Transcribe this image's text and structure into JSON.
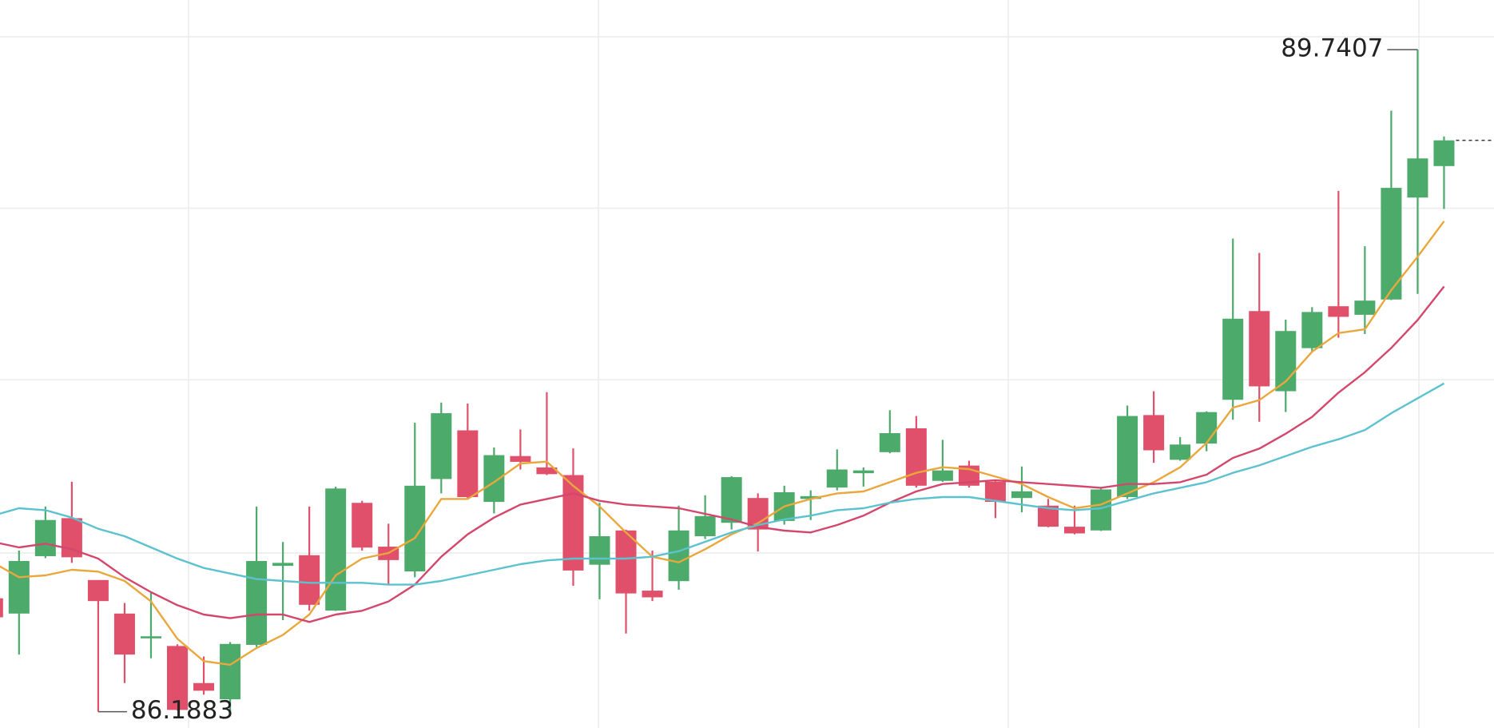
{
  "chart_data": {
    "type": "candlestick",
    "up_color": "#4caa6b",
    "down_color": "#e0506a",
    "ylim": [
      86.101,
      90.007
    ],
    "yticks": [
      87.04,
      87.97,
      88.89,
      89.81
    ],
    "grid": true,
    "open": [
      86.797,
      86.715,
      87.023,
      87.227,
      86.895,
      86.715,
      86.582,
      86.541,
      86.342,
      86.255,
      86.547,
      86.971,
      87.028,
      86.731,
      87.309,
      87.074,
      86.941,
      87.437,
      87.698,
      87.314,
      87.56,
      87.499,
      87.458,
      86.977,
      87.161,
      86.838,
      86.889,
      87.13,
      87.202,
      87.335,
      87.212,
      87.33,
      87.391,
      87.468,
      87.581,
      87.709,
      87.427,
      87.509,
      87.422,
      87.335,
      87.294,
      87.181,
      87.161,
      87.34,
      87.78,
      87.54,
      87.627,
      87.862,
      88.338,
      87.908,
      88.139,
      88.364,
      88.318,
      88.4,
      88.947,
      89.116
    ],
    "high": [
      86.833,
      87.053,
      87.289,
      87.422,
      86.895,
      86.772,
      86.833,
      86.55,
      86.485,
      86.562,
      87.289,
      87.099,
      87.289,
      87.396,
      87.32,
      87.197,
      87.739,
      87.847,
      87.842,
      87.606,
      87.703,
      87.903,
      87.601,
      87.309,
      87.165,
      87.053,
      87.294,
      87.35,
      87.452,
      87.36,
      87.401,
      87.376,
      87.596,
      87.499,
      87.806,
      87.775,
      87.647,
      87.535,
      87.425,
      87.504,
      87.33,
      87.294,
      87.385,
      87.831,
      87.908,
      87.662,
      87.8,
      88.727,
      88.65,
      88.292,
      88.359,
      88.983,
      88.686,
      89.413,
      89.7407,
      89.275
    ],
    "low": [
      86.68,
      86.495,
      87.012,
      86.987,
      86.1883,
      86.342,
      86.475,
      86.195,
      86.28,
      86.193,
      86.536,
      86.68,
      86.731,
      86.729,
      87.053,
      86.869,
      86.91,
      87.36,
      87.335,
      87.253,
      87.488,
      87.458,
      86.864,
      86.792,
      86.608,
      86.782,
      86.843,
      87.115,
      87.166,
      87.048,
      87.192,
      87.217,
      87.376,
      87.396,
      87.575,
      87.391,
      87.422,
      87.391,
      87.227,
      87.258,
      87.178,
      87.14,
      87.158,
      87.33,
      87.524,
      87.535,
      87.586,
      87.755,
      87.744,
      87.796,
      88.118,
      88.195,
      88.215,
      88.397,
      88.43,
      88.886
    ],
    "close": [
      86.695,
      86.997,
      87.217,
      87.017,
      86.782,
      86.495,
      86.593,
      86.198,
      86.301,
      86.552,
      86.997,
      86.987,
      86.762,
      87.386,
      87.069,
      87.002,
      87.401,
      87.79,
      87.34,
      87.565,
      87.529,
      87.463,
      86.946,
      87.13,
      86.823,
      86.802,
      87.161,
      87.238,
      87.447,
      87.166,
      87.366,
      87.345,
      87.488,
      87.483,
      87.683,
      87.401,
      87.483,
      87.401,
      87.314,
      87.371,
      87.181,
      87.145,
      87.381,
      87.775,
      87.591,
      87.622,
      87.796,
      88.297,
      87.934,
      88.231,
      88.333,
      88.307,
      88.394,
      88.999,
      89.157,
      89.254
    ],
    "lines": [
      {
        "color": "#e9a73c",
        "values": [
          86.99,
          86.91,
          86.92,
          86.95,
          86.94,
          86.89,
          86.78,
          86.58,
          86.46,
          86.44,
          86.53,
          86.6,
          86.71,
          86.92,
          87.01,
          87.04,
          87.12,
          87.33,
          87.33,
          87.42,
          87.52,
          87.53,
          87.4,
          87.29,
          87.15,
          87.02,
          86.99,
          87.06,
          87.14,
          87.2,
          87.29,
          87.33,
          87.36,
          87.37,
          87.42,
          87.47,
          87.5,
          87.49,
          87.45,
          87.41,
          87.34,
          87.28,
          87.3,
          87.36,
          87.42,
          87.5,
          87.63,
          87.82,
          87.86,
          87.96,
          88.12,
          88.22,
          88.24,
          88.45,
          88.63,
          88.82
        ]
      },
      {
        "color": "#d4476d",
        "values": [
          87.1,
          87.07,
          87.09,
          87.06,
          87.01,
          86.91,
          86.83,
          86.76,
          86.71,
          86.69,
          86.71,
          86.71,
          86.67,
          86.71,
          86.73,
          86.78,
          86.87,
          87.02,
          87.14,
          87.23,
          87.3,
          87.33,
          87.36,
          87.32,
          87.3,
          87.29,
          87.28,
          87.25,
          87.22,
          87.18,
          87.16,
          87.15,
          87.19,
          87.24,
          87.31,
          87.37,
          87.41,
          87.42,
          87.43,
          87.42,
          87.41,
          87.4,
          87.39,
          87.41,
          87.41,
          87.42,
          87.46,
          87.55,
          87.6,
          87.68,
          87.77,
          87.9,
          88.01,
          88.14,
          88.29,
          88.47
        ]
      },
      {
        "color": "#5cc2cf",
        "values": [
          87.24,
          87.28,
          87.27,
          87.23,
          87.17,
          87.13,
          87.07,
          87.01,
          86.96,
          86.93,
          86.9,
          86.89,
          86.88,
          86.88,
          86.88,
          86.87,
          86.87,
          86.89,
          86.92,
          86.95,
          86.98,
          87.0,
          87.01,
          87.01,
          87.01,
          87.02,
          87.05,
          87.1,
          87.15,
          87.19,
          87.22,
          87.24,
          87.27,
          87.28,
          87.31,
          87.33,
          87.34,
          87.34,
          87.32,
          87.3,
          87.28,
          87.27,
          87.28,
          87.32,
          87.36,
          87.39,
          87.42,
          87.47,
          87.51,
          87.56,
          87.61,
          87.65,
          87.7,
          87.79,
          87.87,
          87.95
        ]
      }
    ]
  }
}
